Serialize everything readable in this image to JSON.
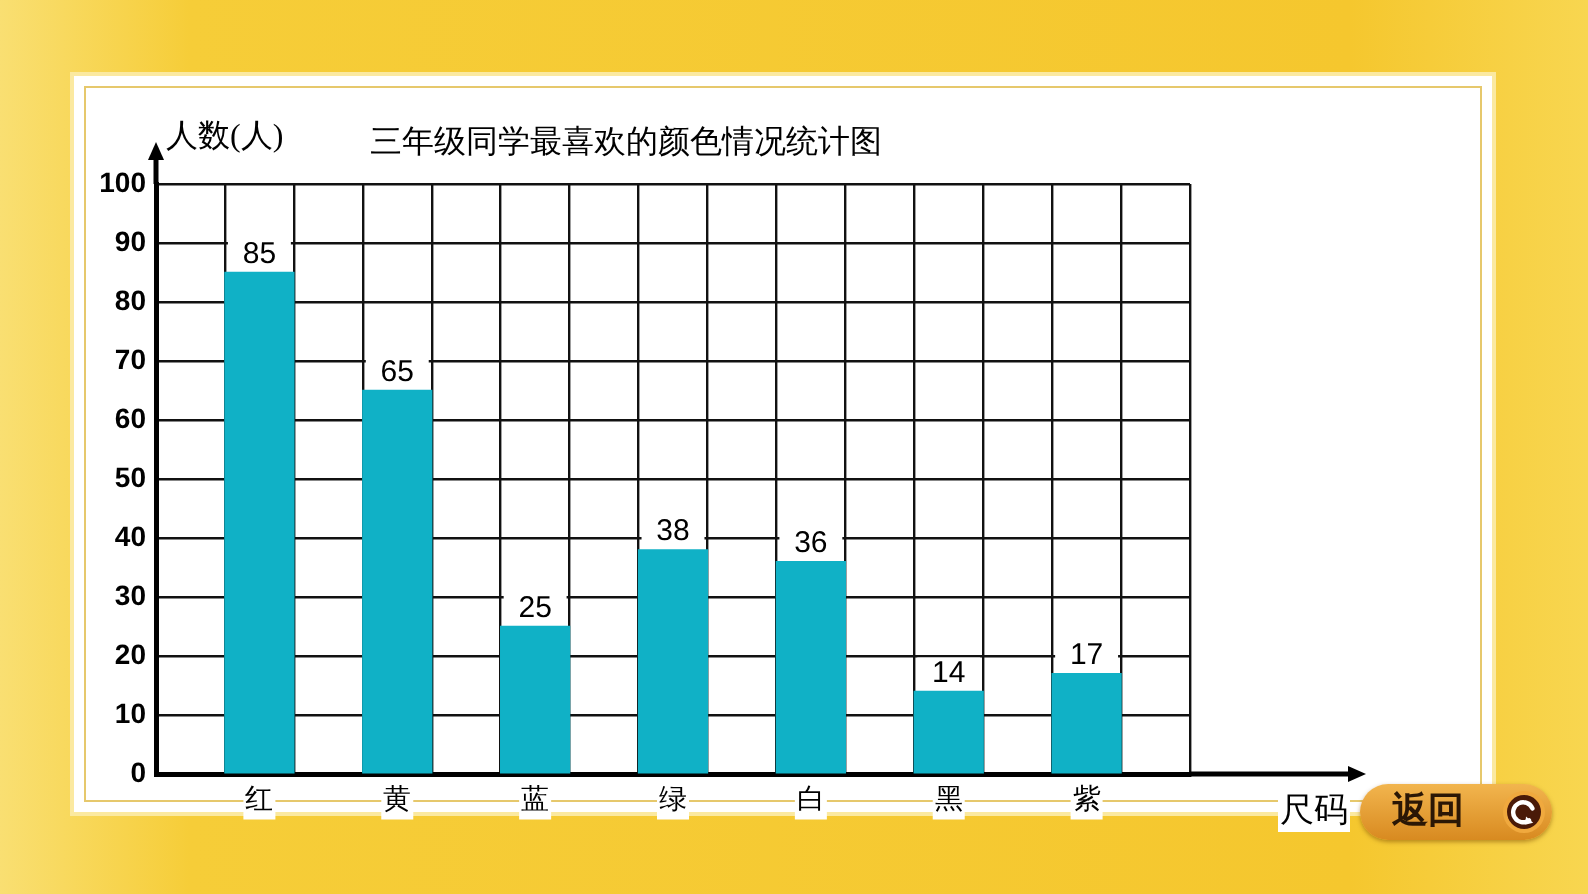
{
  "chart_data": {
    "type": "bar",
    "title": "三年级同学最喜欢的颜色情况统计图",
    "ylabel": "人数(人)",
    "xlabel": "尺码",
    "categories": [
      null,
      "红",
      null,
      "黄",
      null,
      "蓝",
      null,
      "绿",
      null,
      "白",
      null,
      "黑",
      null,
      "紫",
      null
    ],
    "values": [
      null,
      85,
      null,
      65,
      null,
      25,
      null,
      38,
      null,
      36,
      null,
      14,
      null,
      17,
      null
    ],
    "color": "#10b1c6",
    "ylim": [
      0,
      100
    ],
    "yticks": [
      0,
      10,
      20,
      30,
      40,
      50,
      60,
      70,
      80,
      90,
      100
    ],
    "grid": true,
    "data_labels": true,
    "annotations": [
      "返回"
    ]
  }
}
